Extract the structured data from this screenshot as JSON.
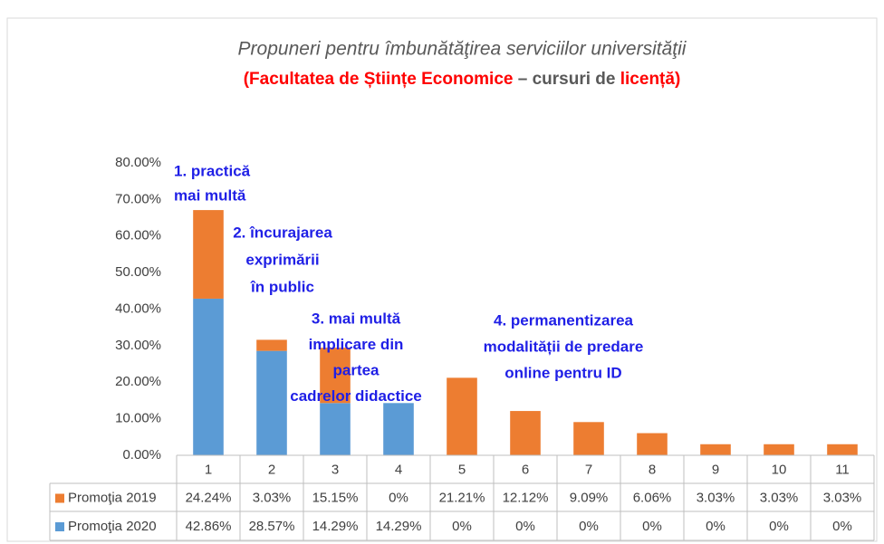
{
  "chart_data": {
    "type": "stacked_bar",
    "title": "Propuneri pentru îmbunătăţirea  serviciilor universităţii",
    "subtitle_parts": [
      {
        "text": "(Facultatea de Științe Economice",
        "color": "#ff0000"
      },
      {
        "text": " – cursuri de ",
        "color": "#595959"
      },
      {
        "text": "licență)",
        "color": "#ff0000"
      }
    ],
    "categories": [
      "1",
      "2",
      "3",
      "4",
      "5",
      "6",
      "7",
      "8",
      "9",
      "10",
      "11"
    ],
    "series": [
      {
        "name": "Promoţia 2019",
        "color": "#ed7d31",
        "values": [
          24.24,
          3.03,
          15.15,
          0,
          21.21,
          12.12,
          9.09,
          6.06,
          3.03,
          3.03,
          3.03
        ],
        "value_labels": [
          "24.24%",
          "3.03%",
          "15.15%",
          "0%",
          "21.21%",
          "12.12%",
          "9.09%",
          "6.06%",
          "3.03%",
          "3.03%",
          "3.03%"
        ]
      },
      {
        "name": "Promoţia 2020",
        "color": "#5b9bd5",
        "values": [
          42.86,
          28.57,
          14.29,
          14.29,
          0,
          0,
          0,
          0,
          0,
          0,
          0
        ],
        "value_labels": [
          "42.86%",
          "28.57%",
          "14.29%",
          "14.29%",
          "0%",
          "0%",
          "0%",
          "0%",
          "0%",
          "0%",
          "0%"
        ]
      }
    ],
    "ylim": [
      0,
      80
    ],
    "yticks": [
      {
        "value": 0,
        "label": "0.00%"
      },
      {
        "value": 10,
        "label": "10.00%"
      },
      {
        "value": 20,
        "label": "20.00%"
      },
      {
        "value": 30,
        "label": "30.00%"
      },
      {
        "value": 40,
        "label": "40.00%"
      },
      {
        "value": 50,
        "label": "50.00%"
      },
      {
        "value": 60,
        "label": "60.00%"
      },
      {
        "value": 70,
        "label": "70.00%"
      },
      {
        "value": 80,
        "label": "80.00%"
      }
    ],
    "annotations": [
      {
        "lines": [
          "1. practică",
          "mai multă"
        ]
      },
      {
        "lines": [
          "2. încurajarea",
          "exprimării",
          "în public"
        ]
      },
      {
        "lines": [
          "3. mai multă",
          "implicare din",
          "partea",
          "cadrelor didactice"
        ]
      },
      {
        "lines": [
          "4. permanentizarea",
          "modalității de predare",
          "online pentru ID"
        ]
      }
    ],
    "annotation_color": "#1f1fe6"
  }
}
